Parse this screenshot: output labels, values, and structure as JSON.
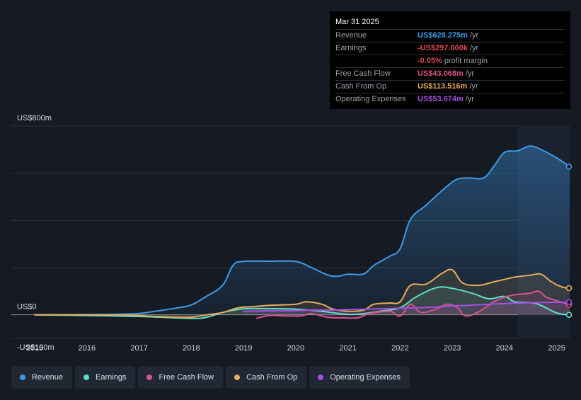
{
  "tooltip": {
    "date": "Mar 31 2025",
    "rows": [
      {
        "label": "Revenue",
        "value": "US$628.275m",
        "unit": "/yr",
        "color": "#3d9be9"
      },
      {
        "label": "Earnings",
        "value": "-US$297.000k",
        "unit": "/yr",
        "color": "#e0484f"
      },
      {
        "label": "",
        "value": "-0.05%",
        "unit": "profit margin",
        "color": "#e0484f"
      },
      {
        "label": "Free Cash Flow",
        "value": "US$43.068m",
        "unit": "/yr",
        "color": "#d9538a"
      },
      {
        "label": "Cash From Op",
        "value": "US$113.516m",
        "unit": "/yr",
        "color": "#e8ac5a"
      },
      {
        "label": "Operating Expenses",
        "value": "US$53.674m",
        "unit": "/yr",
        "color": "#a54fe5"
      }
    ]
  },
  "legend": [
    {
      "label": "Revenue",
      "color": "#3d9be9"
    },
    {
      "label": "Earnings",
      "color": "#5de0c9"
    },
    {
      "label": "Free Cash Flow",
      "color": "#d9538a"
    },
    {
      "label": "Cash From Op",
      "color": "#e8ac5a"
    },
    {
      "label": "Operating Expenses",
      "color": "#a54fe5"
    }
  ],
  "chart_data": {
    "type": "area",
    "title": "",
    "ylim": [
      -100,
      800
    ],
    "y_tick_labels": [
      {
        "value": 800,
        "label": "US$800m"
      },
      {
        "value": 0,
        "label": "US$0"
      },
      {
        "value": -100,
        "label": "-US$100m"
      }
    ],
    "x_ticks": [
      2015,
      2016,
      2017,
      2018,
      2019,
      2020,
      2021,
      2022,
      2023,
      2024,
      2025
    ],
    "x_tick_labels": [
      "2015",
      "2016",
      "2017",
      "2018",
      "2019",
      "2020",
      "2021",
      "2022",
      "2023",
      "2024",
      "2025"
    ],
    "xlim": [
      2014.55,
      2025.25
    ],
    "highlight_start": 2024.25,
    "grid": true,
    "series": [
      {
        "name": "Revenue",
        "color": "#3d9be9",
        "points": [
          [
            2015.0,
            0
          ],
          [
            2016.0,
            1
          ],
          [
            2016.6,
            3
          ],
          [
            2017.0,
            6
          ],
          [
            2017.3,
            15
          ],
          [
            2017.7,
            28
          ],
          [
            2018.0,
            42
          ],
          [
            2018.3,
            80
          ],
          [
            2018.6,
            125
          ],
          [
            2018.8,
            210
          ],
          [
            2019.0,
            226
          ],
          [
            2019.5,
            227
          ],
          [
            2020.0,
            226
          ],
          [
            2020.3,
            200
          ],
          [
            2020.6,
            170
          ],
          [
            2020.8,
            163
          ],
          [
            2021.0,
            172
          ],
          [
            2021.3,
            173
          ],
          [
            2021.5,
            210
          ],
          [
            2021.8,
            248
          ],
          [
            2022.0,
            280
          ],
          [
            2022.2,
            405
          ],
          [
            2022.5,
            465
          ],
          [
            2022.9,
            545
          ],
          [
            2023.1,
            575
          ],
          [
            2023.3,
            580
          ],
          [
            2023.6,
            580
          ],
          [
            2023.8,
            630
          ],
          [
            2024.0,
            688
          ],
          [
            2024.25,
            695
          ],
          [
            2024.5,
            715
          ],
          [
            2024.75,
            695
          ],
          [
            2025.0,
            665
          ],
          [
            2025.25,
            628
          ]
        ]
      },
      {
        "name": "Earnings",
        "color": "#5de0c9",
        "points": [
          [
            2015.0,
            0
          ],
          [
            2016.0,
            -3
          ],
          [
            2017.0,
            -7
          ],
          [
            2018.0,
            -15
          ],
          [
            2018.3,
            -10
          ],
          [
            2018.6,
            10
          ],
          [
            2019.0,
            25
          ],
          [
            2019.5,
            26
          ],
          [
            2020.0,
            24
          ],
          [
            2020.5,
            15
          ],
          [
            2021.0,
            2
          ],
          [
            2021.3,
            5
          ],
          [
            2021.6,
            15
          ],
          [
            2022.0,
            30
          ],
          [
            2022.3,
            75
          ],
          [
            2022.7,
            115
          ],
          [
            2023.0,
            112
          ],
          [
            2023.4,
            90
          ],
          [
            2023.7,
            68
          ],
          [
            2024.0,
            78
          ],
          [
            2024.2,
            55
          ],
          [
            2024.6,
            48
          ],
          [
            2025.0,
            8
          ],
          [
            2025.25,
            0
          ]
        ]
      },
      {
        "name": "Free Cash Flow",
        "color": "#d9538a",
        "points": [
          [
            2019.25,
            -15
          ],
          [
            2019.5,
            -3
          ],
          [
            2019.8,
            -5
          ],
          [
            2020.1,
            -5
          ],
          [
            2020.3,
            5
          ],
          [
            2020.6,
            -10
          ],
          [
            2020.9,
            -13
          ],
          [
            2021.2,
            -12
          ],
          [
            2021.4,
            5
          ],
          [
            2021.8,
            15
          ],
          [
            2022.0,
            -5
          ],
          [
            2022.2,
            45
          ],
          [
            2022.4,
            10
          ],
          [
            2022.7,
            25
          ],
          [
            2022.9,
            45
          ],
          [
            2023.1,
            30
          ],
          [
            2023.25,
            -5
          ],
          [
            2023.5,
            12
          ],
          [
            2023.8,
            55
          ],
          [
            2024.0,
            75
          ],
          [
            2024.2,
            85
          ],
          [
            2024.5,
            92
          ],
          [
            2024.65,
            100
          ],
          [
            2024.8,
            75
          ],
          [
            2025.0,
            60
          ],
          [
            2025.25,
            43
          ]
        ]
      },
      {
        "name": "Cash From Op",
        "color": "#e8ac5a",
        "points": [
          [
            2015.0,
            0
          ],
          [
            2016.0,
            0
          ],
          [
            2016.8,
            -2
          ],
          [
            2017.2,
            -6
          ],
          [
            2017.7,
            -10
          ],
          [
            2018.0,
            -10
          ],
          [
            2018.3,
            0
          ],
          [
            2018.6,
            10
          ],
          [
            2018.9,
            30
          ],
          [
            2019.2,
            35
          ],
          [
            2019.5,
            40
          ],
          [
            2020.0,
            45
          ],
          [
            2020.2,
            55
          ],
          [
            2020.5,
            45
          ],
          [
            2020.7,
            25
          ],
          [
            2021.0,
            15
          ],
          [
            2021.3,
            20
          ],
          [
            2021.5,
            45
          ],
          [
            2021.8,
            50
          ],
          [
            2022.0,
            55
          ],
          [
            2022.2,
            125
          ],
          [
            2022.5,
            130
          ],
          [
            2022.8,
            175
          ],
          [
            2023.0,
            190
          ],
          [
            2023.2,
            135
          ],
          [
            2023.5,
            125
          ],
          [
            2023.8,
            140
          ],
          [
            2024.0,
            150
          ],
          [
            2024.2,
            160
          ],
          [
            2024.5,
            168
          ],
          [
            2024.7,
            172
          ],
          [
            2024.9,
            140
          ],
          [
            2025.1,
            118
          ],
          [
            2025.25,
            113
          ]
        ]
      },
      {
        "name": "Operating Expenses",
        "color": "#a54fe5",
        "points": [
          [
            2019.0,
            15
          ],
          [
            2019.5,
            17
          ],
          [
            2020.0,
            18
          ],
          [
            2020.3,
            20
          ],
          [
            2020.7,
            20
          ],
          [
            2021.0,
            22
          ],
          [
            2021.3,
            24
          ],
          [
            2021.7,
            26
          ],
          [
            2022.0,
            28
          ],
          [
            2022.3,
            30
          ],
          [
            2022.7,
            33
          ],
          [
            2023.0,
            38
          ],
          [
            2023.3,
            40
          ],
          [
            2023.7,
            45
          ],
          [
            2024.0,
            48
          ],
          [
            2024.3,
            50
          ],
          [
            2024.7,
            52
          ],
          [
            2025.0,
            53
          ],
          [
            2025.25,
            54
          ]
        ]
      }
    ]
  }
}
